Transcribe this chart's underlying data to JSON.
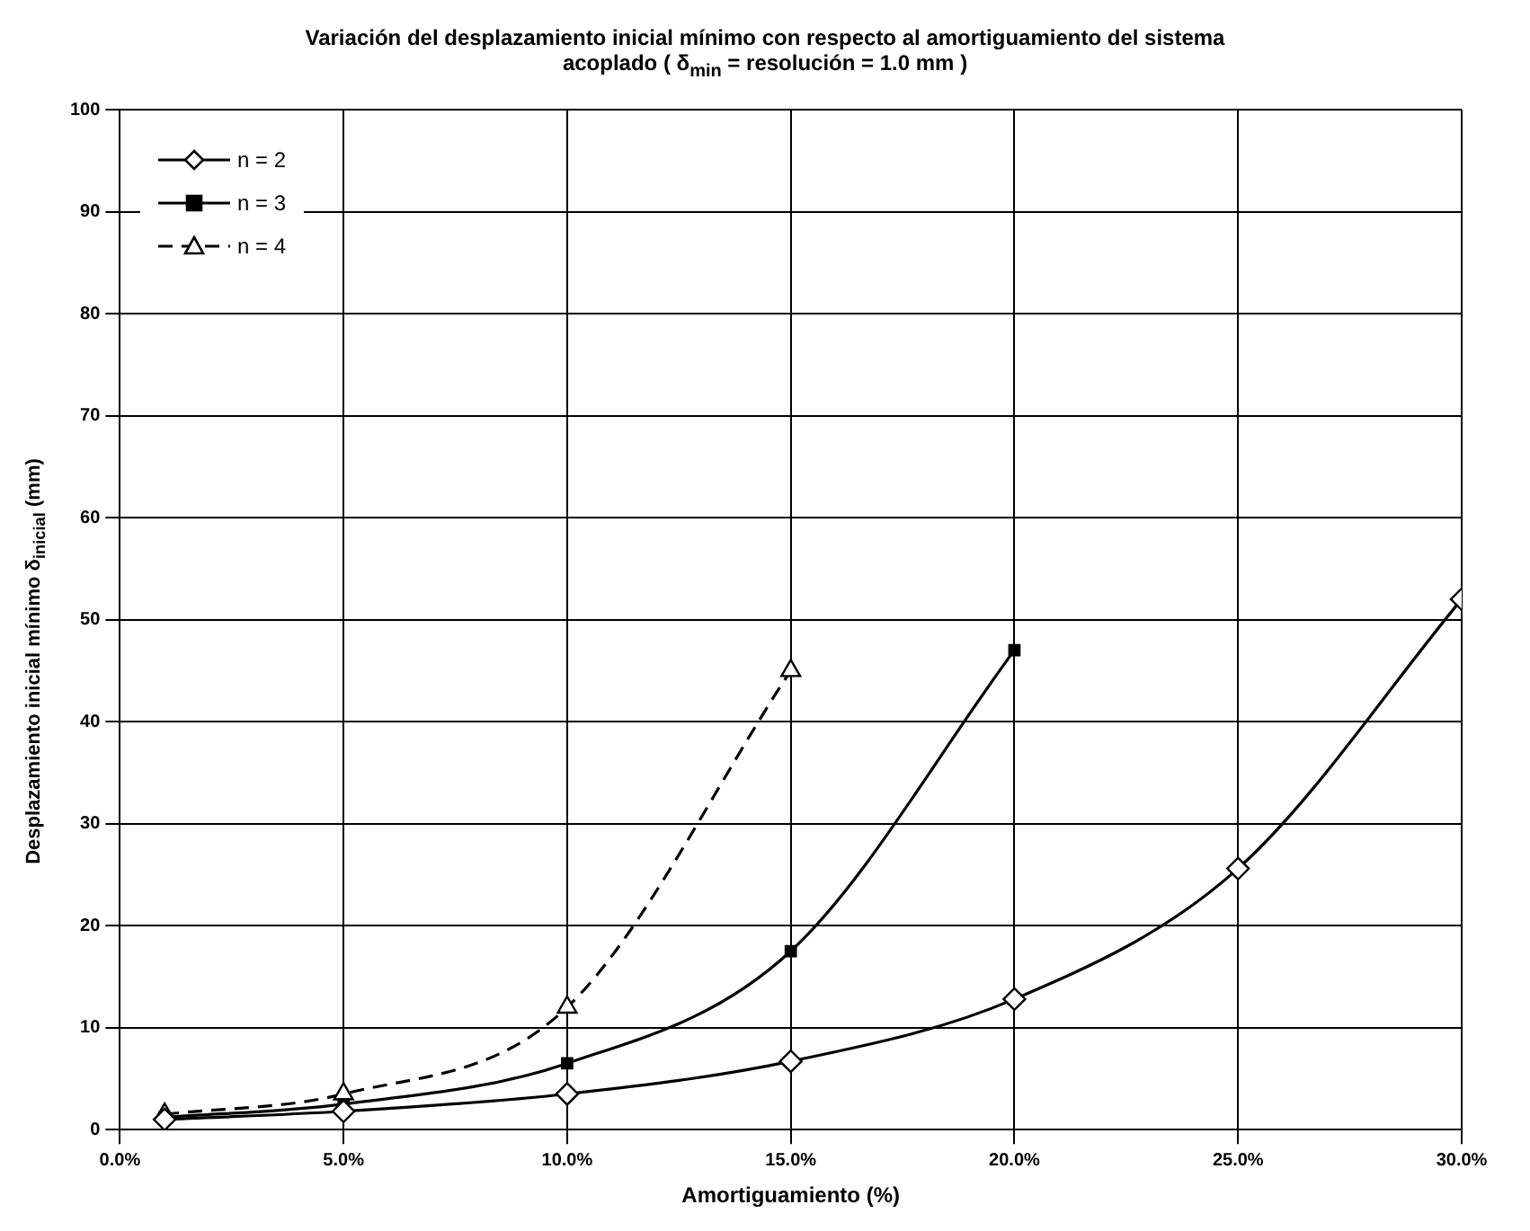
{
  "chart_data": {
    "type": "line",
    "title": "Variación del desplazamiento inicial mínimo con respecto al amortiguamiento del sistema acoplado ( δ$_{min}$ = resolución = 1.0 mm )",
    "xlabel": "Amortiguamiento (%)",
    "ylabel": "Desplazamiento inicial mínimo δ$_{inicial}$ (mm)",
    "x": [
      1,
      5,
      10,
      15,
      20,
      25,
      30
    ],
    "series": [
      {
        "name": "n = 2",
        "color": "#000000",
        "marker": "diamond",
        "line_style": "solid",
        "values": [
          1.0,
          1.8,
          3.5,
          6.7,
          12.8,
          25.6,
          52
        ]
      },
      {
        "name": "n = 3",
        "color": "#000000",
        "marker": "square",
        "line_style": "solid",
        "values": [
          1.2,
          2.5,
          6.5,
          17.5,
          47,
          null,
          null
        ]
      },
      {
        "name": "n = 4",
        "color": "#000000",
        "marker": "triangle",
        "line_style": "dashed",
        "values": [
          1.5,
          3.5,
          12,
          45,
          null,
          null,
          null
        ]
      }
    ],
    "xlim": [
      0,
      30
    ],
    "xticks": [
      {
        "value": 0,
        "label": "0.0%"
      },
      {
        "value": 5,
        "label": "5.0%"
      },
      {
        "value": 10,
        "label": "10.0%"
      },
      {
        "value": 15,
        "label": "15.0%"
      },
      {
        "value": 20,
        "label": "20.0%"
      },
      {
        "value": 25,
        "label": "25.0%"
      },
      {
        "value": 30,
        "label": "30.0%"
      }
    ],
    "ylim": [
      0,
      100
    ],
    "yticks": [
      0,
      10,
      20,
      30,
      40,
      50,
      60,
      70,
      80,
      90,
      100
    ],
    "grid": true,
    "legend": "top left"
  }
}
